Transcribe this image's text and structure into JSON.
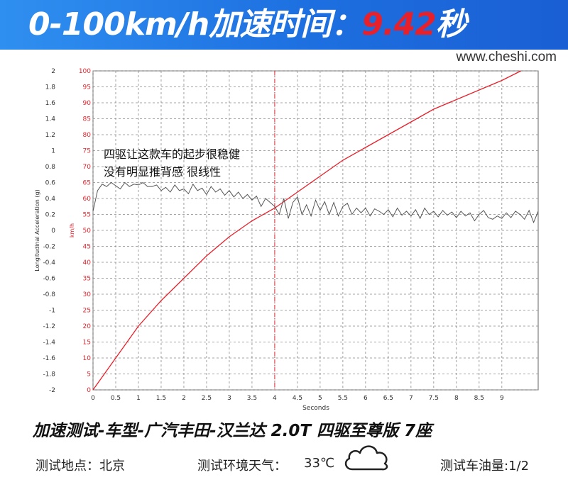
{
  "header": {
    "title_prefix": "0-100km/h加速时间：",
    "title_value": "9.42",
    "title_unit": "秒",
    "highlight_color": "#e8202a",
    "banner_color": "#1d6fe0"
  },
  "watermark": "www.cheshi.com",
  "chart_data": {
    "type": "line",
    "xlabel": "Seconds",
    "ylabel_left": "Longitudinal Acceleration (g)",
    "ylabel_right": "km/h",
    "xlim": [
      0,
      9.8
    ],
    "ylim_left": [
      -2,
      2
    ],
    "ylim_right": [
      0,
      100
    ],
    "x_ticks": [
      "0",
      "0.5",
      "1",
      "1.5",
      "2",
      "2.5",
      "3",
      "3.5",
      "4",
      "4.5",
      "5",
      "5.5",
      "6",
      "6.5",
      "7",
      "7.5",
      "8",
      "8.5",
      "9"
    ],
    "y_left_ticks": [
      "2",
      "1.8",
      "1.6",
      "1.4",
      "1.2",
      "1",
      "0.8",
      "0.6",
      "0.4",
      "0.2",
      "0",
      "-0.2",
      "-0.4",
      "-0.6",
      "-0.8",
      "-1",
      "-1.2",
      "-1.4",
      "-1.6",
      "-1.8",
      "-2"
    ],
    "y_right_ticks": [
      "100",
      "95",
      "90",
      "85",
      "80",
      "75",
      "70",
      "65",
      "60",
      "55",
      "50",
      "45",
      "40",
      "35",
      "30",
      "25",
      "20",
      "15",
      "10",
      "5",
      "0"
    ],
    "grid": true,
    "marker_x": 4,
    "annotation": [
      "四驱让这款车的起步很稳健",
      "没有明显推背感 很线性"
    ],
    "series": [
      {
        "axis": "right",
        "color": "#e8202a",
        "x": [
          0,
          0.5,
          1,
          1.5,
          2,
          2.5,
          3,
          3.5,
          4,
          4.5,
          5,
          5.5,
          6,
          6.5,
          7,
          7.5,
          8,
          8.5,
          9,
          9.42,
          9.8
        ],
        "y": [
          0,
          10,
          20,
          28,
          35,
          42,
          48,
          53,
          57,
          62,
          67,
          72,
          76,
          80,
          84,
          88,
          91,
          94,
          97,
          100,
          102
        ]
      },
      {
        "axis": "left",
        "color": "#555555",
        "x": [
          0,
          0.1,
          0.2,
          0.3,
          0.4,
          0.5,
          0.6,
          0.7,
          0.8,
          0.9,
          1.0,
          1.1,
          1.2,
          1.3,
          1.4,
          1.5,
          1.6,
          1.7,
          1.8,
          1.9,
          2.0,
          2.1,
          2.2,
          2.3,
          2.4,
          2.5,
          2.6,
          2.7,
          2.8,
          2.9,
          3.0,
          3.1,
          3.2,
          3.3,
          3.4,
          3.5,
          3.6,
          3.7,
          3.8,
          3.9,
          4.0,
          4.1,
          4.2,
          4.3,
          4.4,
          4.5,
          4.6,
          4.7,
          4.8,
          4.9,
          5.0,
          5.1,
          5.2,
          5.3,
          5.4,
          5.5,
          5.6,
          5.7,
          5.8,
          5.9,
          6.0,
          6.1,
          6.2,
          6.3,
          6.4,
          6.5,
          6.6,
          6.7,
          6.8,
          6.9,
          7.0,
          7.1,
          7.2,
          7.3,
          7.4,
          7.5,
          7.6,
          7.7,
          7.8,
          7.9,
          8.0,
          8.1,
          8.2,
          8.3,
          8.4,
          8.5,
          8.6,
          8.7,
          8.8,
          8.9,
          9.0,
          9.1,
          9.2,
          9.3,
          9.4,
          9.5,
          9.6,
          9.7,
          9.8
        ],
        "y": [
          0.24,
          0.5,
          0.58,
          0.55,
          0.6,
          0.56,
          0.52,
          0.6,
          0.55,
          0.58,
          0.57,
          0.6,
          0.55,
          0.55,
          0.57,
          0.5,
          0.54,
          0.48,
          0.57,
          0.5,
          0.52,
          0.46,
          0.58,
          0.5,
          0.53,
          0.45,
          0.55,
          0.48,
          0.52,
          0.44,
          0.5,
          0.42,
          0.48,
          0.4,
          0.45,
          0.38,
          0.43,
          0.3,
          0.4,
          0.35,
          0.3,
          0.2,
          0.4,
          0.15,
          0.35,
          0.42,
          0.2,
          0.32,
          0.18,
          0.38,
          0.25,
          0.36,
          0.2,
          0.35,
          0.18,
          0.3,
          0.34,
          0.2,
          0.28,
          0.22,
          0.28,
          0.18,
          0.27,
          0.24,
          0.2,
          0.26,
          0.17,
          0.28,
          0.19,
          0.24,
          0.18,
          0.26,
          0.15,
          0.28,
          0.2,
          0.24,
          0.17,
          0.25,
          0.19,
          0.23,
          0.16,
          0.24,
          0.18,
          0.22,
          0.12,
          0.2,
          0.25,
          0.16,
          0.14,
          0.18,
          0.15,
          0.22,
          0.16,
          0.24,
          0.2,
          0.14,
          0.25,
          0.1,
          0.24
        ]
      }
    ]
  },
  "subtitle": "加速测试-车型-广汽丰田-汉兰达 2.0T 四驱至尊版 7座",
  "info": {
    "location": "测试地点：北京",
    "weather_label": "测试环境天气：",
    "temperature": "33℃",
    "weather_icon": "cloud-icon",
    "fuel": "测试车油量:1/2"
  }
}
